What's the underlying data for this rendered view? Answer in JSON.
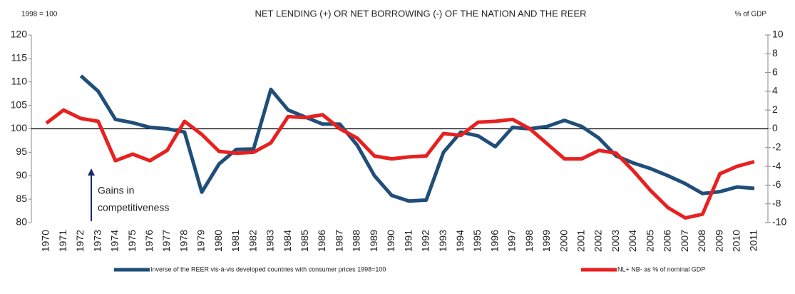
{
  "chart_data": {
    "type": "line",
    "title": "NET LENDING (+) OR NET BORROWING (-) OF THE NATION AND THE REER",
    "y_label": "1998 = 100",
    "y2_label": "% of GDP",
    "annotation": [
      "Gains in",
      "competitiveness"
    ],
    "categories": [
      "1970",
      "1971",
      "1972",
      "1973",
      "1974",
      "1975",
      "1976",
      "1977",
      "1978",
      "1979",
      "1980",
      "1981",
      "1982",
      "1983",
      "1984",
      "1985",
      "1986",
      "1987",
      "1988",
      "1989",
      "1990",
      "1991",
      "1992",
      "1993",
      "1994",
      "1995",
      "1996",
      "1997",
      "1998",
      "1999",
      "2000",
      "2001",
      "2002",
      "2003",
      "2004",
      "2005",
      "2006",
      "2007",
      "2008",
      "2009",
      "2010",
      "2011"
    ],
    "ylim": [
      80,
      120
    ],
    "yticks": [
      80,
      85,
      90,
      95,
      100,
      105,
      110,
      115,
      120
    ],
    "y2lim": [
      -10,
      10
    ],
    "y2ticks": [
      -10,
      -8,
      -6,
      -4,
      -2,
      0,
      2,
      4,
      6,
      8,
      10
    ],
    "legend": "bottom",
    "series": [
      {
        "name": "Inverse of the REER vis-à-vis developed countries with consumer prices 1998=100",
        "color": "#1f4e79",
        "values": [
          null,
          null,
          111.3,
          108,
          102,
          101.3,
          100.3,
          100,
          99.3,
          86.5,
          92.5,
          95.6,
          95.7,
          108.4,
          104,
          102.5,
          101,
          101,
          96.5,
          90,
          85.8,
          84.6,
          84.8,
          95,
          99.3,
          98.5,
          96.2,
          100.3,
          100,
          100.5,
          101.8,
          100.5,
          98,
          94.2,
          92.7,
          91.5,
          90,
          88.3,
          86.2,
          86.6,
          87.6,
          87.3
        ]
      },
      {
        "name": "NL+ NB- as % of nominal GDP",
        "color": "#e8201f",
        "axis": "y2",
        "values": [
          0.6,
          2,
          1.1,
          0.8,
          -3.4,
          -2.7,
          -3.4,
          -2.3,
          0.8,
          -0.6,
          -2.4,
          -2.6,
          -2.5,
          -1.5,
          1.3,
          1.2,
          1.5,
          0,
          -1,
          -2.9,
          -3.2,
          -3,
          -2.9,
          -0.5,
          -0.7,
          0.7,
          0.8,
          1.0,
          0,
          -1.6,
          -3.2,
          -3.2,
          -2.3,
          -2.6,
          -4.5,
          -6.6,
          -8.4,
          -9.5,
          -9.1,
          -4.8,
          -4,
          -3.5
        ]
      }
    ]
  }
}
